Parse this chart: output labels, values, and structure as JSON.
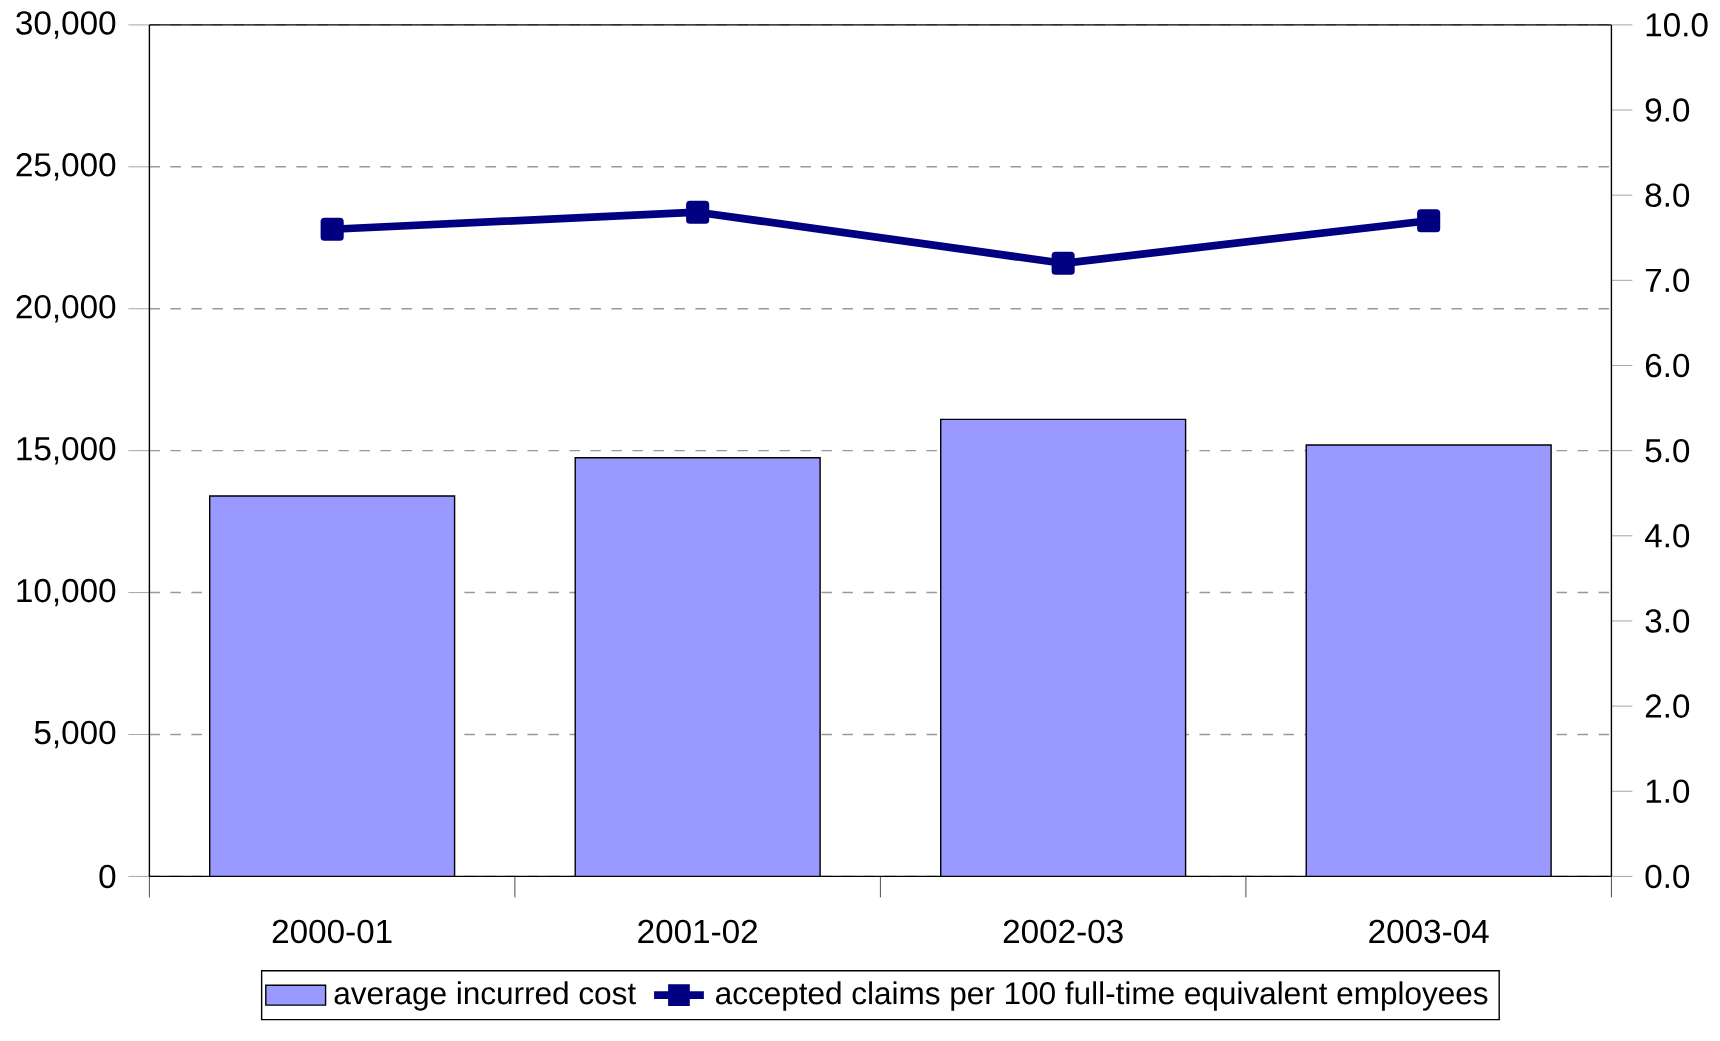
{
  "chart_data": {
    "type": "bar",
    "categories": [
      "2000-01",
      "2001-02",
      "2002-03",
      "2003-04"
    ],
    "series": [
      {
        "name": "average incurred cost",
        "color": "#9999ff",
        "values": [
          13400,
          14750,
          16100,
          15200
        ]
      },
      {
        "name": "accepted claims per 100 full-time equivalent employees",
        "type": "line",
        "axis": "y2",
        "color": "#000080",
        "values": [
          7.6,
          7.8,
          7.2,
          7.7
        ]
      }
    ],
    "ylim": [
      0,
      30000
    ],
    "yticks": [
      {
        "value": 0,
        "label": "0"
      },
      {
        "value": 5000,
        "label": "5,000"
      },
      {
        "value": 10000,
        "label": "10,000"
      },
      {
        "value": 15000,
        "label": "15,000"
      },
      {
        "value": 20000,
        "label": "20,000"
      },
      {
        "value": 25000,
        "label": "25,000"
      },
      {
        "value": 30000,
        "label": "30,000"
      }
    ],
    "y2lim": [
      0,
      10
    ],
    "y2ticks": [
      {
        "value": 0,
        "label": "0.0"
      },
      {
        "value": 1,
        "label": "1.0"
      },
      {
        "value": 2,
        "label": "2.0"
      },
      {
        "value": 3,
        "label": "3.0"
      },
      {
        "value": 4,
        "label": "4.0"
      },
      {
        "value": 5,
        "label": "5.0"
      },
      {
        "value": 6,
        "label": "6.0"
      },
      {
        "value": 7,
        "label": "7.0"
      },
      {
        "value": 8,
        "label": "8.0"
      },
      {
        "value": 9,
        "label": "9.0"
      },
      {
        "value": 10,
        "label": "10.0"
      }
    ],
    "grid": "y",
    "legend": "bottom",
    "marker": "square",
    "line_style": "solid"
  }
}
